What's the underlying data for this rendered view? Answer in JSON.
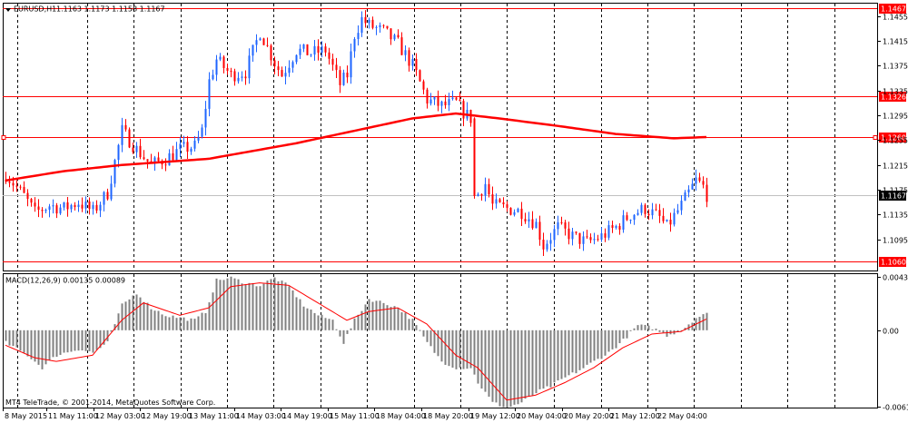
{
  "header": {
    "symbol": "EURUSD,H1",
    "quote": "1.1163 1.1173 1.1158 1.1167"
  },
  "indicator": {
    "label": "MACD(12,26,9) 0.00135 0.00089"
  },
  "copyright": "MT4 TeleTrade, © 2001-2014, MetaQuotes Software Corp.",
  "colors": {
    "level": "#ff0000",
    "ma": "#ff0000",
    "bull": "#1e64ff",
    "bear": "#ff0000",
    "macd_hist": "#808080",
    "signal": "#ff0000",
    "grid": "#000000"
  },
  "chart_data": {
    "type": "candlestick",
    "y_range": [
      1.1045,
      1.1475
    ],
    "y_ticks": [
      "1.1455",
      "1.1415",
      "1.1375",
      "1.1335",
      "1.1295",
      "1.1255",
      "1.1215",
      "1.1175",
      "1.1135",
      "1.1095"
    ],
    "y_tick_values": [
      1.1455,
      1.1415,
      1.1375,
      1.1335,
      1.1295,
      1.1255,
      1.1215,
      1.1175,
      1.1135,
      1.1095
    ],
    "x_labels": [
      "8 May 2015",
      "11 May 11:00",
      "12 May 03:00",
      "12 May 19:00",
      "13 May 11:00",
      "14 May 03:00",
      "14 May 19:00",
      "15 May 11:00",
      "18 May 04:00",
      "18 May 20:00",
      "19 May 12:00",
      "20 May 04:00",
      "20 May 20:00",
      "21 May 12:00",
      "22 May 04:00"
    ],
    "levels": [
      {
        "value": 1.1467,
        "label": "1.1467"
      },
      {
        "value": 1.1326,
        "label": "1.1326"
      },
      {
        "value": 1.126,
        "label": "1.1260"
      },
      {
        "value": 1.106,
        "label": "1.1060"
      }
    ],
    "current_price": {
      "value": 1.1167,
      "label": "1.1167"
    },
    "close_anchors": [
      [
        0,
        1.12
      ],
      [
        5,
        1.1165
      ],
      [
        8,
        1.1138
      ],
      [
        12,
        1.115
      ],
      [
        16,
        1.1145
      ],
      [
        20,
        1.1155
      ],
      [
        24,
        1.114
      ],
      [
        28,
        1.117
      ],
      [
        32,
        1.127
      ],
      [
        36,
        1.124
      ],
      [
        40,
        1.1215
      ],
      [
        44,
        1.1225
      ],
      [
        48,
        1.124
      ],
      [
        52,
        1.1245
      ],
      [
        54,
        1.127
      ],
      [
        56,
        1.135
      ],
      [
        58,
        1.1385
      ],
      [
        62,
        1.136
      ],
      [
        66,
        1.1365
      ],
      [
        70,
        1.143
      ],
      [
        74,
        1.138
      ],
      [
        76,
        1.136
      ],
      [
        80,
        1.14
      ],
      [
        84,
        1.1395
      ],
      [
        88,
        1.14
      ],
      [
        92,
        1.1345
      ],
      [
        94,
        1.136
      ],
      [
        96,
        1.1425
      ],
      [
        98,
        1.145
      ],
      [
        100,
        1.144
      ],
      [
        104,
        1.143
      ],
      [
        108,
        1.141
      ],
      [
        112,
        1.1375
      ],
      [
        116,
        1.132
      ],
      [
        120,
        1.131
      ],
      [
        124,
        1.1315
      ],
      [
        126,
        1.13
      ],
      [
        128,
        1.129
      ],
      [
        129,
        1.116
      ],
      [
        132,
        1.1185
      ],
      [
        134,
        1.115
      ],
      [
        138,
        1.1145
      ],
      [
        142,
        1.114
      ],
      [
        146,
        1.112
      ],
      [
        148,
        1.1085
      ],
      [
        152,
        1.1115
      ],
      [
        156,
        1.11
      ],
      [
        160,
        1.109
      ],
      [
        164,
        1.11
      ],
      [
        168,
        1.1115
      ],
      [
        172,
        1.1135
      ],
      [
        176,
        1.1145
      ],
      [
        180,
        1.113
      ],
      [
        182,
        1.1115
      ],
      [
        186,
        1.115
      ],
      [
        190,
        1.119
      ],
      [
        192,
        1.118
      ],
      [
        193,
        1.1167
      ]
    ],
    "ma_anchors": [
      [
        0,
        1.119
      ],
      [
        16,
        1.1205
      ],
      [
        32,
        1.1215
      ],
      [
        56,
        1.1225
      ],
      [
        80,
        1.125
      ],
      [
        96,
        1.127
      ],
      [
        112,
        1.129
      ],
      [
        124,
        1.1298
      ],
      [
        136,
        1.129
      ],
      [
        152,
        1.1278
      ],
      [
        168,
        1.1265
      ],
      [
        184,
        1.1258
      ],
      [
        193,
        1.126
      ]
    ],
    "macd_range": [
      -0.0062,
      0.0045
    ],
    "macd_ticks": [
      "0.00431",
      "0.00",
      "-0.0061"
    ],
    "macd_tick_values": [
      0.00431,
      0.0,
      -0.0061
    ],
    "macd_anchors": [
      [
        0,
        -0.001
      ],
      [
        6,
        -0.002
      ],
      [
        10,
        -0.003
      ],
      [
        14,
        -0.002
      ],
      [
        20,
        -0.0015
      ],
      [
        24,
        -0.0018
      ],
      [
        28,
        -0.001
      ],
      [
        32,
        0.002
      ],
      [
        36,
        0.003
      ],
      [
        40,
        0.0018
      ],
      [
        44,
        0.0012
      ],
      [
        48,
        0.001
      ],
      [
        52,
        0.0008
      ],
      [
        55,
        0.0015
      ],
      [
        58,
        0.004
      ],
      [
        62,
        0.0042
      ],
      [
        66,
        0.0038
      ],
      [
        70,
        0.0036
      ],
      [
        74,
        0.0042
      ],
      [
        78,
        0.0035
      ],
      [
        82,
        0.002
      ],
      [
        86,
        0.0012
      ],
      [
        90,
        0.0008
      ],
      [
        93,
        -0.001
      ],
      [
        96,
        0.0008
      ],
      [
        100,
        0.0025
      ],
      [
        104,
        0.0022
      ],
      [
        108,
        0.0018
      ],
      [
        112,
        0.0008
      ],
      [
        116,
        -0.001
      ],
      [
        120,
        -0.0025
      ],
      [
        124,
        -0.003
      ],
      [
        128,
        -0.003
      ],
      [
        130,
        -0.0042
      ],
      [
        134,
        -0.0058
      ],
      [
        138,
        -0.0062
      ],
      [
        142,
        -0.0058
      ],
      [
        146,
        -0.005
      ],
      [
        150,
        -0.0045
      ],
      [
        154,
        -0.0038
      ],
      [
        158,
        -0.0032
      ],
      [
        162,
        -0.0025
      ],
      [
        166,
        -0.0018
      ],
      [
        170,
        -0.0008
      ],
      [
        174,
        0.0004
      ],
      [
        178,
        0.0002
      ],
      [
        182,
        -0.0004
      ],
      [
        186,
        0.0
      ],
      [
        190,
        0.001
      ],
      [
        193,
        0.0013
      ]
    ],
    "signal_anchors": [
      [
        0,
        -0.0012
      ],
      [
        8,
        -0.0022
      ],
      [
        14,
        -0.0025
      ],
      [
        24,
        -0.002
      ],
      [
        32,
        0.0008
      ],
      [
        38,
        0.0022
      ],
      [
        48,
        0.0012
      ],
      [
        56,
        0.0018
      ],
      [
        62,
        0.0035
      ],
      [
        70,
        0.0038
      ],
      [
        78,
        0.0036
      ],
      [
        86,
        0.0022
      ],
      [
        94,
        0.0008
      ],
      [
        100,
        0.0015
      ],
      [
        108,
        0.0018
      ],
      [
        116,
        0.0005
      ],
      [
        124,
        -0.002
      ],
      [
        130,
        -0.003
      ],
      [
        138,
        -0.0056
      ],
      [
        146,
        -0.0052
      ],
      [
        154,
        -0.0042
      ],
      [
        162,
        -0.003
      ],
      [
        170,
        -0.0014
      ],
      [
        178,
        -0.0003
      ],
      [
        186,
        -0.0001
      ],
      [
        193,
        0.0009
      ]
    ],
    "macd_current": 0.00135,
    "signal_current": 0.00089
  }
}
